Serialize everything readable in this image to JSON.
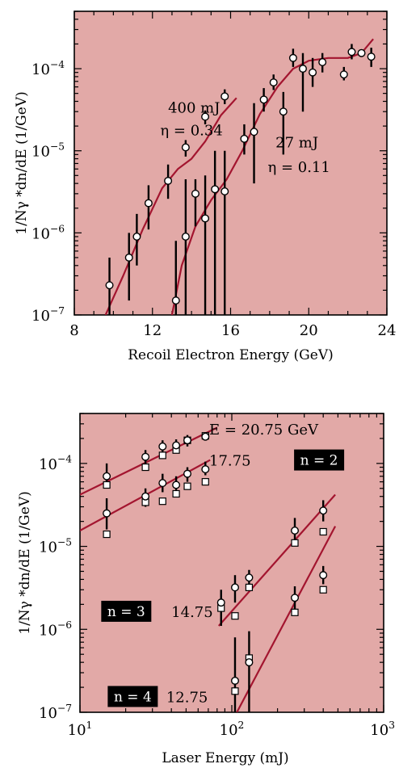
{
  "colors": {
    "background": "#e2a9a7",
    "curve": "#a3152f",
    "axis": "#000000",
    "label_box_bg": "#000000",
    "label_box_fg": "#ffffff"
  },
  "chart_data": [
    {
      "type": "scatter",
      "xlabel": "Recoil Electron Energy    (GeV)",
      "ylabel": "1/Nγ *dn/dE    (1/GeV)",
      "xlim": [
        8,
        24
      ],
      "ylim": [
        1e-07,
        0.0005
      ],
      "yscale": "log",
      "xticks": [
        "8",
        "12",
        "16",
        "20",
        "24"
      ],
      "yticks": [
        {
          "base": "10",
          "exp": "−4",
          "value": 0.0001
        },
        {
          "base": "10",
          "exp": "−5",
          "value": 1e-05
        },
        {
          "base": "10",
          "exp": "−6",
          "value": 1e-06
        },
        {
          "base": "10",
          "exp": "−7",
          "value": 1e-07
        }
      ],
      "annotations": [
        {
          "text": "400 mJ",
          "x": 12.8,
          "y": 2.9e-05
        },
        {
          "text": "η = 0.34",
          "x": 12.4,
          "y": 1.55e-05
        },
        {
          "text": "27 mJ",
          "x": 18.3,
          "y": 1.1e-05
        },
        {
          "text": "η = 0.11",
          "x": 17.9,
          "y": 5.5e-06
        }
      ],
      "series": [
        {
          "points": [
            {
              "x": 9.8,
              "y": 2.3e-07,
              "lo": 8e-08,
              "hi": 5e-07
            },
            {
              "x": 10.8,
              "y": 5e-07,
              "lo": 1.5e-07,
              "hi": 1e-06
            },
            {
              "x": 11.2,
              "y": 9e-07,
              "lo": 4e-07,
              "hi": 1.7e-06
            },
            {
              "x": 11.8,
              "y": 2.3e-06,
              "lo": 1.1e-06,
              "hi": 3.8e-06
            },
            {
              "x": 12.8,
              "y": 4.3e-06,
              "lo": 2.6e-06,
              "hi": 6.8e-06
            },
            {
              "x": 13.7,
              "y": 1.1e-05,
              "lo": 8.5e-06,
              "hi": 1.35e-05
            },
            {
              "x": 14.7,
              "y": 2.6e-05,
              "lo": 2.1e-05,
              "hi": 3.1e-05
            },
            {
              "x": 15.7,
              "y": 4.6e-05,
              "lo": 3.7e-05,
              "hi": 5.6e-05
            }
          ],
          "curve": [
            [
              9.6,
              1e-07
            ],
            [
              10.5,
              3e-07
            ],
            [
              11.5,
              1.1e-06
            ],
            [
              12.5,
              3.5e-06
            ],
            [
              13.3,
              6e-06
            ],
            [
              14.0,
              8e-06
            ],
            [
              14.7,
              1.3e-05
            ],
            [
              15.5,
              2.7e-05
            ],
            [
              16.3,
              4.4e-05
            ]
          ]
        },
        {
          "points": [
            {
              "x": 13.2,
              "y": 1.5e-07,
              "lo": 8e-08,
              "hi": 8e-07
            },
            {
              "x": 13.7,
              "y": 9e-07,
              "lo": 8e-08,
              "hi": 4.5e-06
            },
            {
              "x": 14.2,
              "y": 3e-06,
              "lo": 1.2e-06,
              "hi": 4.5e-06
            },
            {
              "x": 14.7,
              "y": 1.5e-06,
              "lo": 8e-08,
              "hi": 5e-06
            },
            {
              "x": 15.2,
              "y": 3.4e-06,
              "lo": 8e-08,
              "hi": 1e-05
            },
            {
              "x": 15.7,
              "y": 3.2e-06,
              "lo": 8e-08,
              "hi": 1e-05
            },
            {
              "x": 16.7,
              "y": 1.4e-05,
              "lo": 9e-06,
              "hi": 2.1e-05
            },
            {
              "x": 17.2,
              "y": 1.7e-05,
              "lo": 4e-06,
              "hi": 3.8e-05
            },
            {
              "x": 17.7,
              "y": 4.2e-05,
              "lo": 3e-05,
              "hi": 5.8e-05
            },
            {
              "x": 18.2,
              "y": 6.8e-05,
              "lo": 5.5e-05,
              "hi": 8.5e-05
            },
            {
              "x": 18.7,
              "y": 3e-05,
              "lo": 9e-06,
              "hi": 5.2e-05
            },
            {
              "x": 19.2,
              "y": 0.000135,
              "lo": 0.000105,
              "hi": 0.000175
            },
            {
              "x": 19.7,
              "y": 0.0001,
              "lo": 3e-05,
              "hi": 0.000155
            },
            {
              "x": 20.2,
              "y": 9e-05,
              "lo": 6e-05,
              "hi": 0.000135
            },
            {
              "x": 20.7,
              "y": 0.00012,
              "lo": 9e-05,
              "hi": 0.000155
            },
            {
              "x": 21.8,
              "y": 8.5e-05,
              "lo": 7.2e-05,
              "hi": 0.000105
            },
            {
              "x": 22.2,
              "y": 0.00016,
              "lo": 0.00013,
              "hi": 0.0002
            },
            {
              "x": 22.7,
              "y": 0.000155,
              "lo": 0.00014,
              "hi": 0.00017
            },
            {
              "x": 23.2,
              "y": 0.00014,
              "lo": 0.000105,
              "hi": 0.00018
            }
          ],
          "curve": [
            [
              13.0,
              1e-07
            ],
            [
              13.5,
              4e-07
            ],
            [
              14.2,
              1.2e-06
            ],
            [
              15.0,
              2.5e-06
            ],
            [
              15.8,
              4.5e-06
            ],
            [
              16.6,
              1e-05
            ],
            [
              17.5,
              2.8e-05
            ],
            [
              18.4,
              6e-05
            ],
            [
              19.2,
              0.0001
            ],
            [
              20.0,
              0.000125
            ],
            [
              21.0,
              0.000135
            ],
            [
              22.0,
              0.000135
            ],
            [
              22.7,
              0.000155
            ],
            [
              23.3,
              0.00023
            ]
          ]
        }
      ]
    },
    {
      "type": "scatter",
      "xlabel": "Laser Energy    (mJ)",
      "ylabel": "1/Nγ *dn/dE    (1/GeV)",
      "xlim": [
        10,
        1000
      ],
      "ylim": [
        1e-07,
        0.0004
      ],
      "xscale": "log",
      "yscale": "log",
      "xticks": [
        {
          "base": "10",
          "exp": "1",
          "value": 10
        },
        {
          "base": "10",
          "exp": "2",
          "value": 100
        },
        {
          "base": "10",
          "exp": "3",
          "value": 1000
        }
      ],
      "yticks": [
        {
          "base": "10",
          "exp": "−4",
          "value": 0.0001
        },
        {
          "base": "10",
          "exp": "−5",
          "value": 1e-05
        },
        {
          "base": "10",
          "exp": "−6",
          "value": 1e-06
        },
        {
          "base": "10",
          "exp": "−7",
          "value": 1e-07
        }
      ],
      "annotations": [
        {
          "text": "E = 20.75 GeV",
          "x": 71,
          "y": 0.00026
        },
        {
          "text": "17.75",
          "x": 71,
          "y": 0.00011
        },
        {
          "text": "14.75",
          "x": 40,
          "y": 1.65e-06
        },
        {
          "text": "12.75",
          "x": 37,
          "y": 1.55e-07
        }
      ],
      "label_boxes": [
        {
          "text": "n = 2",
          "x": 270,
          "y": 0.00011
        },
        {
          "text": "n = 3",
          "x": 14.5,
          "y": 1.65e-06
        },
        {
          "text": "n = 4",
          "x": 16,
          "y": 1.55e-07
        }
      ],
      "series": [
        {
          "name": "E = 20.75 GeV",
          "circles": [
            {
              "x": 15,
              "y": 7e-05,
              "lo": 5e-05,
              "hi": 0.0001
            },
            {
              "x": 27,
              "y": 0.00012,
              "lo": 9.8e-05,
              "hi": 0.000145
            },
            {
              "x": 35,
              "y": 0.00016,
              "lo": 0.00013,
              "hi": 0.00019
            },
            {
              "x": 43,
              "y": 0.000165,
              "lo": 0.00014,
              "hi": 0.000195
            },
            {
              "x": 51,
              "y": 0.00019,
              "lo": 0.00016,
              "hi": 0.00022
            },
            {
              "x": 67,
              "y": 0.00021,
              "lo": 0.000195,
              "hi": 0.000225
            }
          ],
          "squares": [
            {
              "x": 15,
              "y": 5.5e-05
            },
            {
              "x": 27,
              "y": 9e-05
            },
            {
              "x": 35,
              "y": 0.000125
            },
            {
              "x": 43,
              "y": 0.000145
            },
            {
              "x": 51,
              "y": 0.00019
            },
            {
              "x": 67,
              "y": 0.000215
            }
          ],
          "fit": [
            [
              10,
              4.2e-05
            ],
            [
              80,
              0.00027
            ]
          ]
        },
        {
          "name": "17.75",
          "circles": [
            {
              "x": 15,
              "y": 2.5e-05,
              "lo": 1.6e-05,
              "hi": 3.8e-05
            },
            {
              "x": 27,
              "y": 4e-05,
              "lo": 3e-05,
              "hi": 5e-05
            },
            {
              "x": 35,
              "y": 5.8e-05,
              "lo": 4.5e-05,
              "hi": 7.5e-05
            },
            {
              "x": 43,
              "y": 5.5e-05,
              "lo": 4.2e-05,
              "hi": 7e-05
            },
            {
              "x": 51,
              "y": 7.5e-05,
              "lo": 6e-05,
              "hi": 9e-05
            },
            {
              "x": 67,
              "y": 8.5e-05,
              "lo": 7.2e-05,
              "hi": 0.000105
            }
          ],
          "squares": [
            {
              "x": 15,
              "y": 1.4e-05
            },
            {
              "x": 27,
              "y": 3.4e-05
            },
            {
              "x": 35,
              "y": 3.5e-05
            },
            {
              "x": 43,
              "y": 4.3e-05
            },
            {
              "x": 51,
              "y": 5.3e-05
            },
            {
              "x": 67,
              "y": 6e-05
            }
          ],
          "fit": [
            [
              10,
              1.55e-05
            ],
            [
              72,
              0.00011
            ]
          ]
        },
        {
          "name": "14.75",
          "circles": [
            {
              "x": 85,
              "y": 2.1e-06,
              "lo": 1.1e-06,
              "hi": 3e-06
            },
            {
              "x": 105,
              "y": 3.2e-06,
              "lo": 2.1e-06,
              "hi": 4.5e-06
            },
            {
              "x": 130,
              "y": 4.2e-06,
              "lo": 3.3e-06,
              "hi": 5.2e-06
            },
            {
              "x": 260,
              "y": 1.55e-05,
              "lo": 1e-05,
              "hi": 2.2e-05
            },
            {
              "x": 400,
              "y": 2.7e-05,
              "lo": 2e-05,
              "hi": 3.6e-05
            }
          ],
          "squares": [
            {
              "x": 85,
              "y": 1.8e-06
            },
            {
              "x": 105,
              "y": 1.45e-06
            },
            {
              "x": 130,
              "y": 3.2e-06
            },
            {
              "x": 260,
              "y": 1.1e-05
            },
            {
              "x": 400,
              "y": 1.5e-05
            }
          ],
          "fit": [
            [
              82,
              1.1e-06
            ],
            [
              480,
              4.2e-05
            ]
          ]
        },
        {
          "name": "12.75",
          "circles": [
            {
              "x": 105,
              "y": 2.4e-07,
              "lo": 1e-07,
              "hi": 8e-07
            },
            {
              "x": 130,
              "y": 4e-07,
              "lo": 1e-07,
              "hi": 9.5e-07
            },
            {
              "x": 260,
              "y": 2.4e-06,
              "lo": 1.5e-06,
              "hi": 3.3e-06
            },
            {
              "x": 400,
              "y": 4.5e-06,
              "lo": 3.5e-06,
              "hi": 5.8e-06
            }
          ],
          "squares": [
            {
              "x": 105,
              "y": 1.8e-07
            },
            {
              "x": 130,
              "y": 4.5e-07
            },
            {
              "x": 260,
              "y": 1.6e-06
            },
            {
              "x": 400,
              "y": 3e-06
            }
          ],
          "fit": [
            [
              108,
              1e-07
            ],
            [
              480,
              1.75e-05
            ]
          ]
        }
      ]
    }
  ]
}
